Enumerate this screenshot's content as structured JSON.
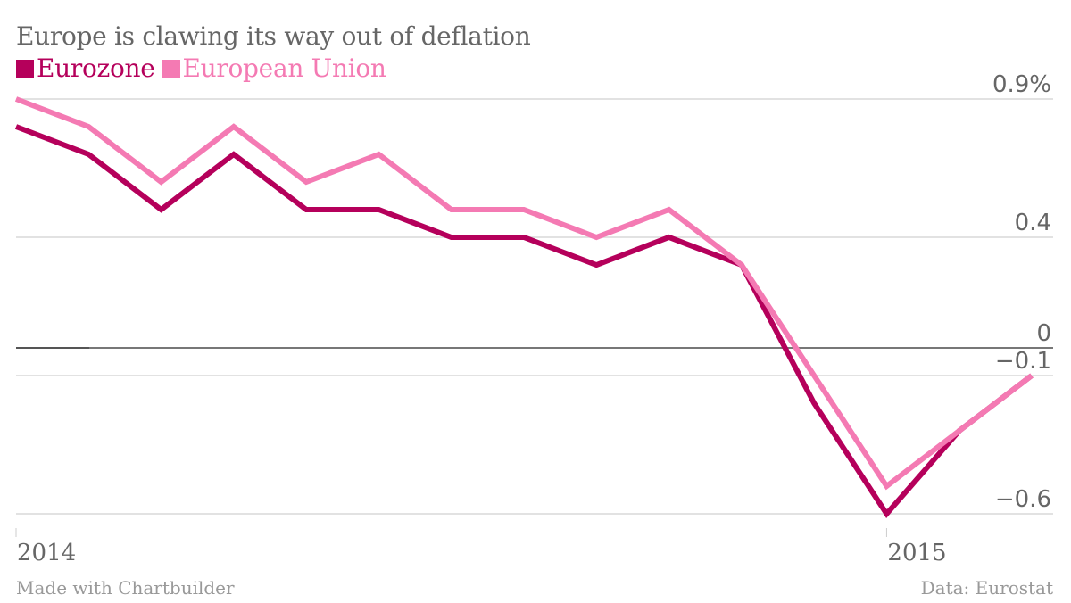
{
  "chart_data": {
    "type": "line",
    "title": "Europe is clawing its way out of deflation",
    "xlabel": "",
    "ylabel": "",
    "x": [
      "Jan 2014",
      "Feb 2014",
      "Mar 2014",
      "Apr 2014",
      "May 2014",
      "Jun 2014",
      "Jul 2014",
      "Aug 2014",
      "Sep 2014",
      "Oct 2014",
      "Nov 2014",
      "Dec 2014",
      "Jan 2015",
      "Feb 2015",
      "Mar 2015"
    ],
    "x_tick_labels": [
      {
        "label": "2014",
        "index": 0
      },
      {
        "label": "2015",
        "index": 12
      }
    ],
    "y_ticks": [
      {
        "value": 0.9,
        "label": "0.9%"
      },
      {
        "value": 0.4,
        "label": "0.4"
      },
      {
        "value": 0,
        "label": "0"
      },
      {
        "value": -0.1,
        "label": "-0.1"
      },
      {
        "value": -0.6,
        "label": "-0.6"
      }
    ],
    "ylim": [
      -0.6,
      0.9
    ],
    "grid": true,
    "legend_position": "top-left",
    "series": [
      {
        "name": "Eurozone",
        "color": "#b5005b",
        "values": [
          0.8,
          0.7,
          0.5,
          0.7,
          0.5,
          0.5,
          0.4,
          0.4,
          0.3,
          0.4,
          0.3,
          -0.2,
          -0.6,
          -0.3,
          -0.1
        ]
      },
      {
        "name": "European Union",
        "color": "#f47ab3",
        "values": [
          0.9,
          0.8,
          0.6,
          0.8,
          0.6,
          0.7,
          0.5,
          0.5,
          0.4,
          0.5,
          0.3,
          -0.1,
          -0.5,
          -0.3,
          -0.1
        ]
      }
    ]
  },
  "footer": {
    "credit": "Made with Chartbuilder",
    "source": "Data: Eurostat"
  }
}
